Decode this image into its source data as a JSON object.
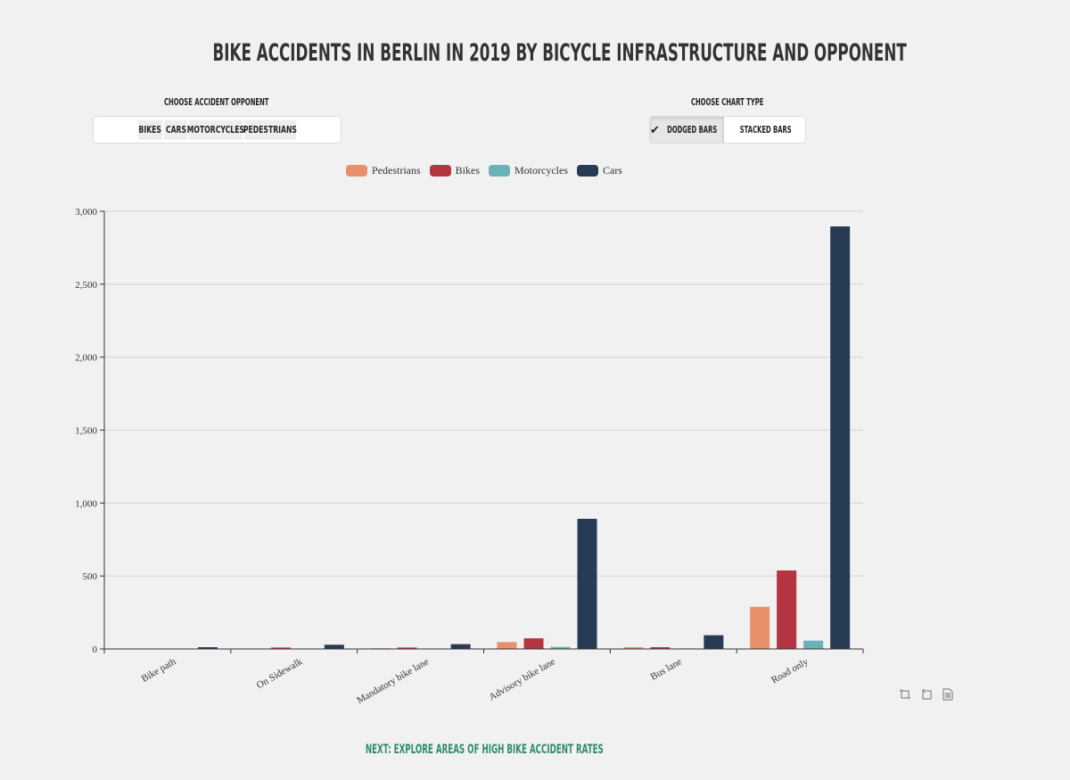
{
  "title": "BIKE ACCIDENTS IN BERLIN IN 2019 BY BICYCLE INFRASTRUCTURE AND OPPONENT",
  "opponent_filter": {
    "label": "CHOOSE ACCIDENT OPPONENT",
    "options": [
      "BIKES",
      "CARS",
      "MOTORCYCLES",
      "PEDESTRIANS"
    ]
  },
  "chart_type": {
    "label": "CHOOSE CHART TYPE",
    "options": [
      "DODGED BARS",
      "STACKED BARS"
    ],
    "selected": "DODGED BARS",
    "check_icon": "checkmark-icon"
  },
  "toolbox": {
    "icons": [
      "zoom-icon",
      "zoom-reset-icon",
      "data-view-icon"
    ]
  },
  "next_link": "NEXT: EXPLORE AREAS OF HIGH BIKE ACCIDENT RATES",
  "chart_data": {
    "type": "bar",
    "categories": [
      "Bike path",
      "On Sidewalk",
      "Mandatory bike lane",
      "Advisory bike lane",
      "Bus lane",
      "Road only"
    ],
    "series": [
      {
        "name": "Pedestrians",
        "color": "#e8906b",
        "values": [
          2,
          3,
          5,
          47,
          12,
          289
        ]
      },
      {
        "name": "Bikes",
        "color": "#b53442",
        "values": [
          1,
          10,
          10,
          73,
          12,
          538
        ]
      },
      {
        "name": "Motorcycles",
        "color": "#6bb1b8",
        "values": [
          0,
          1,
          2,
          14,
          4,
          57
        ]
      },
      {
        "name": "Cars",
        "color": "#273b55",
        "values": [
          12,
          29,
          33,
          892,
          94,
          2896
        ]
      }
    ],
    "ylim": [
      0,
      3000
    ],
    "yticks": [
      "0",
      "500",
      "1,000",
      "1,500",
      "2,000",
      "2,500",
      "3,000"
    ],
    "grid": true,
    "legend": "top-center"
  }
}
